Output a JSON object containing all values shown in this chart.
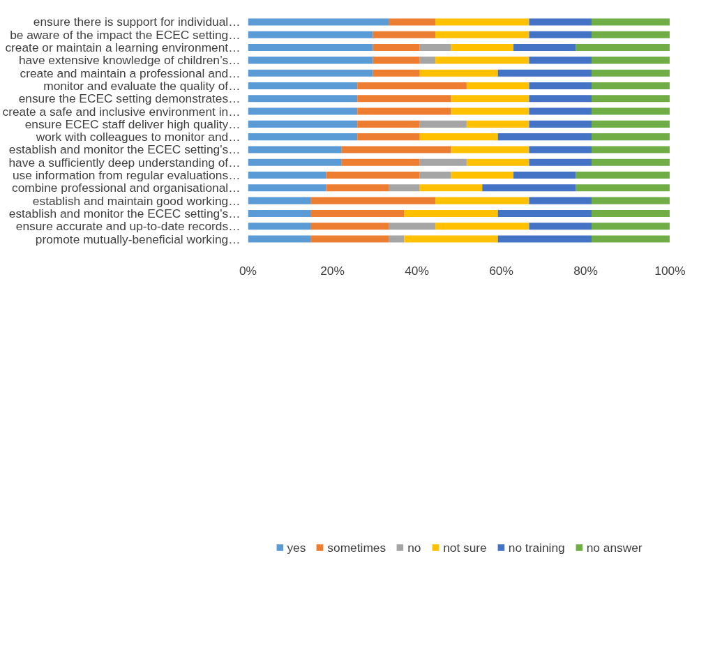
{
  "chart_data": {
    "type": "bar",
    "orientation": "horizontal",
    "stacked": true,
    "categories": [
      "ensure there is support for individual…",
      "be aware of the impact the ECEC setting…",
      "create or maintain a learning environment…",
      "have extensive knowledge of children’s…",
      "create and maintain a professional and…",
      "monitor and evaluate the quality of…",
      "ensure the ECEC setting demonstrates…",
      "create a safe and inclusive environment in…",
      "ensure ECEC staff deliver high quality…",
      "work with colleagues to monitor and…",
      "establish and monitor the ECEC setting's…",
      "have a sufficiently deep understanding of…",
      "use information from regular evaluations…",
      "combine professional and organisational…",
      "establish and maintain good working…",
      "establish and monitor the ECEC setting's…",
      "ensure accurate and up-to-date records…",
      "promote mutually-beneficial working…"
    ],
    "series": [
      {
        "name": "yes",
        "color": "#5b9bd5",
        "values": [
          33.3,
          29.6,
          29.6,
          29.6,
          29.6,
          25.9,
          25.9,
          25.9,
          25.9,
          25.9,
          22.2,
          22.2,
          18.5,
          18.5,
          14.8,
          14.8,
          14.8,
          14.8
        ]
      },
      {
        "name": "sometimes",
        "color": "#ed7d31",
        "values": [
          11.1,
          14.8,
          11.1,
          11.1,
          11.1,
          25.9,
          22.2,
          22.2,
          14.8,
          14.8,
          25.9,
          18.5,
          22.2,
          14.8,
          29.6,
          22.2,
          18.5,
          18.5
        ]
      },
      {
        "name": "no",
        "color": "#a5a5a5",
        "values": [
          0,
          0,
          7.4,
          3.7,
          0,
          0,
          0,
          0,
          11.1,
          0,
          0,
          11.1,
          7.4,
          7.4,
          0,
          0,
          11.1,
          3.7
        ]
      },
      {
        "name": "not sure",
        "color": "#ffc000",
        "values": [
          22.2,
          22.2,
          14.8,
          22.2,
          18.5,
          14.8,
          18.5,
          18.5,
          14.8,
          18.5,
          18.5,
          14.8,
          14.8,
          14.8,
          22.2,
          22.2,
          22.2,
          22.2
        ]
      },
      {
        "name": "no training",
        "color": "#4472c4",
        "values": [
          14.8,
          14.8,
          14.8,
          14.8,
          22.2,
          14.8,
          14.8,
          14.8,
          14.8,
          22.2,
          14.8,
          14.8,
          14.8,
          22.2,
          14.8,
          22.2,
          14.8,
          22.2
        ]
      },
      {
        "name": "no answer",
        "color": "#70ad47",
        "values": [
          18.5,
          18.5,
          22.2,
          18.5,
          18.5,
          18.5,
          18.5,
          18.5,
          18.5,
          18.5,
          18.5,
          18.5,
          22.2,
          22.2,
          18.5,
          18.5,
          18.5,
          18.5
        ]
      }
    ],
    "xlim": [
      0,
      100
    ],
    "xticks": [
      {
        "value": 0,
        "label": "0%"
      },
      {
        "value": 20,
        "label": "20%"
      },
      {
        "value": 40,
        "label": "40%"
      },
      {
        "value": 60,
        "label": "60%"
      },
      {
        "value": 80,
        "label": "80%"
      },
      {
        "value": 100,
        "label": "100%"
      }
    ],
    "grid": false,
    "legend": "bottom"
  }
}
